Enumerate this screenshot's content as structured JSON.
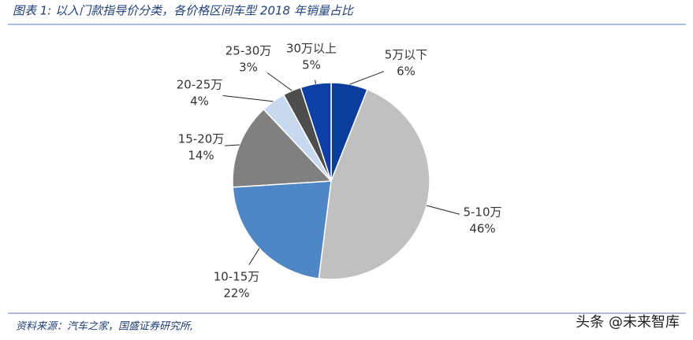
{
  "chart_data": {
    "type": "pie",
    "title": "图表 1:  以入门款指导价分类，各价格区间车型 2018 年销量占比",
    "source": "资料来源：汽车之家，国盛证券研究所,",
    "watermark": "头条 @未来智库",
    "categories": [
      "5万以下",
      "5-10万",
      "10-15万",
      "15-20万",
      "20-25万",
      "25-30万",
      "30万以上"
    ],
    "values": [
      6,
      46,
      22,
      14,
      4,
      3,
      5
    ],
    "value_labels": [
      "6%",
      "46%",
      "22%",
      "14%",
      "4%",
      "3%",
      "5%"
    ],
    "colors": [
      "#0b3d9c",
      "#c0c0c0",
      "#4f86c6",
      "#808080",
      "#c8d8ef",
      "#4d4d4d",
      "#0c40a6"
    ]
  }
}
